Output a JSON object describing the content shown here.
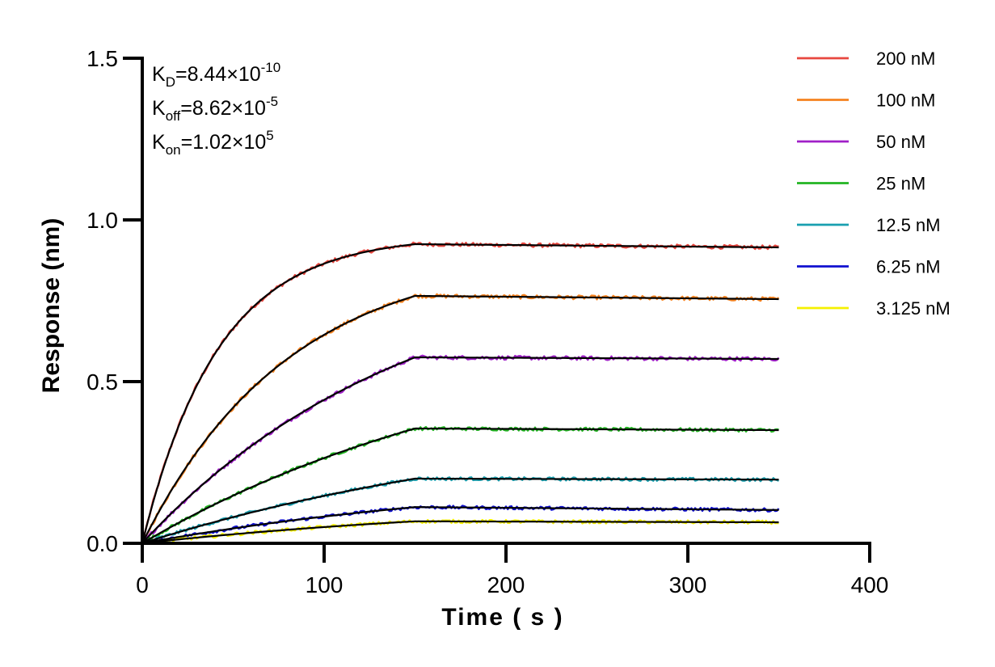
{
  "chart_data": {
    "type": "line",
    "title": "",
    "xlabel": "Time ( s )",
    "ylabel": "Response (nm)",
    "xlim": [
      0,
      400
    ],
    "ylim": [
      0,
      1.5
    ],
    "x_ticks": [
      0,
      100,
      200,
      300,
      400
    ],
    "x_tick_labels": [
      "0",
      "100",
      "200",
      "300",
      "400"
    ],
    "y_ticks": [
      0,
      0.5,
      1.0,
      1.5
    ],
    "y_tick_labels": [
      "0.0",
      "0.5",
      "1.0",
      "1.5"
    ],
    "grid": false,
    "legend_position": "top-right",
    "association_end": 150,
    "x_end": 350,
    "annotations": [
      {
        "base": "K",
        "sub": "D",
        "mid": "=8.44×10",
        "sup": "-10"
      },
      {
        "base": "K",
        "sub": "off",
        "mid": "=8.62×10",
        "sup": "-5"
      },
      {
        "base": "K",
        "sub": "on",
        "mid": "=1.02×10",
        "sup": "5"
      }
    ],
    "fit_color": "#000000",
    "series": [
      {
        "name": "200 nM",
        "color": "#e8473f",
        "plateau": 0.925,
        "end": 0.915
      },
      {
        "name": "100 nM",
        "color": "#f5821f",
        "plateau": 0.765,
        "end": 0.755
      },
      {
        "name": "50 nM",
        "color": "#a020c8",
        "plateau": 0.575,
        "end": 0.57
      },
      {
        "name": "25 nM",
        "color": "#22b522",
        "plateau": 0.355,
        "end": 0.35
      },
      {
        "name": "12.5 nM",
        "color": "#1aa0b0",
        "plateau": 0.2,
        "end": 0.197
      },
      {
        "name": "6.25 nM",
        "color": "#1010d0",
        "plateau": 0.112,
        "end": 0.103
      },
      {
        "name": "3.125 nM",
        "color": "#f5f000",
        "plateau": 0.068,
        "end": 0.065
      }
    ]
  }
}
